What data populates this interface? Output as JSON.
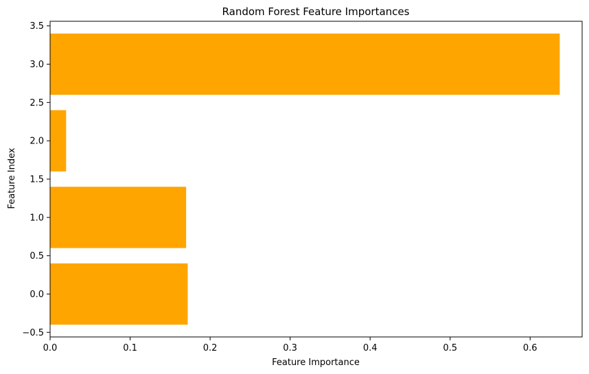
{
  "chart_data": {
    "type": "bar",
    "orientation": "horizontal",
    "title": "Random Forest Feature Importances",
    "xlabel": "Feature Importance",
    "ylabel": "Feature Index",
    "categories": [
      0,
      1,
      2,
      3
    ],
    "values": [
      0.172,
      0.17,
      0.02,
      0.637
    ],
    "bar_height": 0.8,
    "xlim": [
      0,
      0.665
    ],
    "ylim": [
      -0.56,
      3.56
    ],
    "xticks": [
      0.0,
      0.1,
      0.2,
      0.3,
      0.4,
      0.5,
      0.6
    ],
    "xtick_labels": [
      "0.0",
      "0.1",
      "0.2",
      "0.3",
      "0.4",
      "0.5",
      "0.6"
    ],
    "yticks": [
      -0.5,
      0.0,
      0.5,
      1.0,
      1.5,
      2.0,
      2.5,
      3.0,
      3.5
    ],
    "ytick_labels": [
      "−0.5",
      "0.0",
      "0.5",
      "1.0",
      "1.5",
      "2.0",
      "2.5",
      "3.0",
      "3.5"
    ],
    "grid": false,
    "legend": false,
    "bar_color": "#ffa500"
  }
}
